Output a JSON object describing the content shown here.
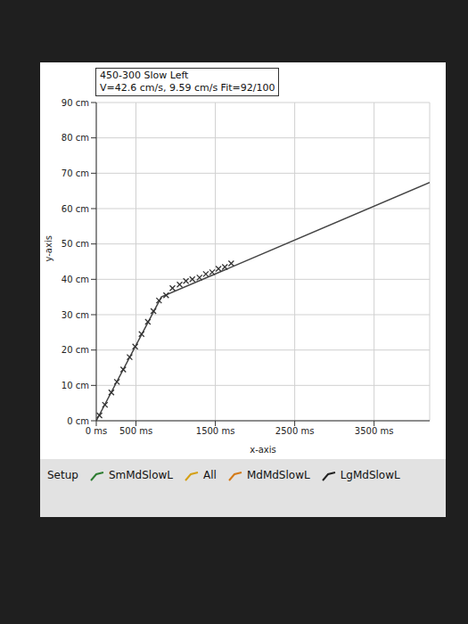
{
  "chart_data": {
    "type": "line",
    "title": "450-300 Slow Left",
    "subtitle": "V=42.6 cm/s, 9.59 cm/s Fit=92/100",
    "x_label": "x-axis",
    "y_label": "y-axis",
    "xlim": [
      0,
      4200
    ],
    "xticks": [
      {
        "value": 0,
        "label": "0 ms"
      },
      {
        "value": 500,
        "label": "500 ms"
      },
      {
        "value": 1500,
        "label": "1500 ms"
      },
      {
        "value": 2500,
        "label": "2500 ms"
      },
      {
        "value": 3500,
        "label": "3500 ms"
      }
    ],
    "ylim": [
      0,
      90
    ],
    "yticks": [
      {
        "value": 0,
        "label": "0 cm"
      },
      {
        "value": 10,
        "label": "10 cm"
      },
      {
        "value": 20,
        "label": "20 cm"
      },
      {
        "value": 30,
        "label": "30 cm"
      },
      {
        "value": 40,
        "label": "40 cm"
      },
      {
        "value": 50,
        "label": "50 cm"
      },
      {
        "value": 60,
        "label": "60 cm"
      },
      {
        "value": 70,
        "label": "70 cm"
      },
      {
        "value": 80,
        "label": "80 cm"
      },
      {
        "value": 90,
        "label": "90 cm"
      }
    ],
    "grid": true,
    "series": [
      {
        "type": "line",
        "color": "#444444",
        "marker": "none",
        "x": [
          0,
          820,
          4200
        ],
        "values": [
          0,
          35,
          67.4
        ]
      },
      {
        "type": "scatter",
        "color": "#333333",
        "marker": "cross",
        "x": [
          40,
          110,
          190,
          260,
          340,
          420,
          490,
          570,
          650,
          720,
          790,
          880,
          960,
          1050,
          1130,
          1210,
          1300,
          1380,
          1460,
          1540,
          1620,
          1700
        ],
        "values": [
          1.5,
          4.5,
          8,
          11,
          14.5,
          18,
          21,
          24.5,
          28,
          31,
          34,
          35.5,
          37.5,
          38.5,
          39.5,
          40,
          40.5,
          41.5,
          42,
          43,
          43.5,
          44.5
        ]
      }
    ]
  },
  "toolbar": [
    "Setup",
    "SmMdSlowL",
    "All",
    "MdMdSlowL",
    "LgMdSlowL"
  ]
}
